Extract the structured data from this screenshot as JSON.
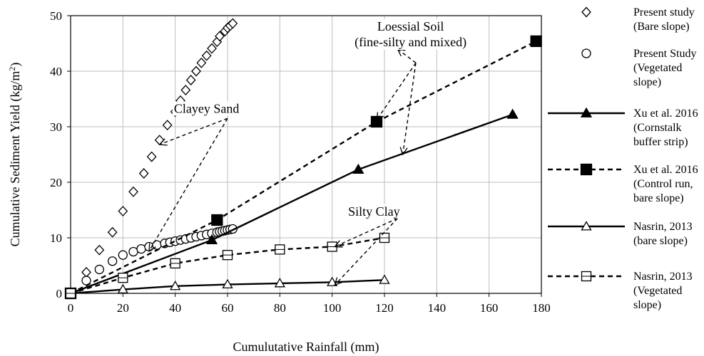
{
  "chart_data": {
    "type": "line",
    "title": "",
    "xlabel": "Cumulutative Rainfall (mm)",
    "ylabel": "Cumulative Sediment Yield (kg/m",
    "ylabel_sup": "2",
    "ylabel_end": ")",
    "xlim": [
      0,
      180
    ],
    "ylim": [
      0,
      50
    ],
    "xticks": [
      "0",
      "20",
      "40",
      "60",
      "80",
      "100",
      "120",
      "140",
      "160",
      "180"
    ],
    "yticks": [
      "0",
      "10",
      "20",
      "30",
      "40",
      "50"
    ],
    "grid": true,
    "legend_position": "right",
    "series": [
      {
        "legend": [
          "Present study",
          "(Bare slope)"
        ],
        "color": "#000000",
        "marker": "diamond-open",
        "line": "none",
        "x": [
          0,
          6,
          11,
          16,
          20,
          24,
          28,
          31,
          34,
          37,
          40,
          42,
          44,
          46,
          48,
          50,
          52,
          54,
          56,
          57,
          59,
          60,
          61,
          62
        ],
        "y": [
          0,
          3.8,
          7.8,
          11,
          14.8,
          18.3,
          21.6,
          24.6,
          27.6,
          30.3,
          32.7,
          34.7,
          36.6,
          38.4,
          40,
          41.5,
          42.8,
          44.1,
          45.3,
          46.3,
          47.2,
          47.8,
          48.2,
          48.6
        ]
      },
      {
        "legend": [
          "Present Study",
          "(Vegetated",
          "slope)"
        ],
        "color": "#000000",
        "marker": "circle-open",
        "line": "none",
        "x": [
          0,
          6,
          11,
          16,
          20,
          24,
          27,
          30,
          33,
          36,
          38,
          40,
          42,
          44,
          46,
          48,
          50,
          52,
          54,
          56,
          57,
          58,
          59,
          60,
          61,
          62
        ],
        "y": [
          0,
          2.3,
          4.3,
          5.8,
          6.9,
          7.5,
          8,
          8.4,
          8.7,
          9,
          9.2,
          9.4,
          9.6,
          9.8,
          10,
          10.2,
          10.4,
          10.6,
          10.8,
          11,
          11.1,
          11.2,
          11.3,
          11.4,
          11.5,
          11.6
        ]
      },
      {
        "legend": [
          "Xu et al. 2016",
          "(Cornstalk",
          "buffer strip)"
        ],
        "color": "#000000",
        "marker": "triangle-filled",
        "line": "solid",
        "x": [
          0,
          54,
          110,
          169
        ],
        "y": [
          0,
          9.6,
          22.3,
          32.2
        ]
      },
      {
        "legend": [
          "Xu et al. 2016",
          "(Control run,",
          "bare slope)"
        ],
        "color": "#000000",
        "marker": "square-filled",
        "line": "dashed",
        "x": [
          0,
          56,
          117,
          178
        ],
        "y": [
          0,
          13.2,
          30.9,
          45.4
        ]
      },
      {
        "legend": [
          "Nasrin, 2013",
          "(bare slope)"
        ],
        "color": "#000000",
        "marker": "triangle-open",
        "line": "solid",
        "x": [
          0,
          20,
          40,
          60,
          80,
          100,
          120
        ],
        "y": [
          0,
          0.7,
          1.3,
          1.6,
          1.8,
          2,
          2.4
        ]
      },
      {
        "legend": [
          "Nasrin, 2013",
          "(Vegetated",
          "slope)"
        ],
        "color": "#000000",
        "marker": "square-open",
        "line": "dashed",
        "x": [
          0,
          20,
          40,
          60,
          80,
          100,
          120
        ],
        "y": [
          0,
          2.8,
          5.4,
          6.9,
          7.9,
          8.4,
          10
        ]
      }
    ],
    "annotations": [
      {
        "lines": [
          "Clayey Sand"
        ],
        "label_at": [
          52,
          32.5
        ],
        "arrows": [
          {
            "from": [
              60,
              31.5
            ],
            "to": [
              34,
              26.8
            ]
          },
          {
            "from": [
              60,
              31.5
            ],
            "to": [
              30,
              7.6
            ]
          }
        ]
      },
      {
        "lines": [
          "Loessial Soil",
          "(fine-silty and mixed)"
        ],
        "label_at": [
          130,
          47.3
        ],
        "arrows": [
          {
            "from": [
              132,
              41.5
            ],
            "to": [
              117,
              31.2
            ]
          },
          {
            "from": [
              132,
              41.5
            ],
            "to": [
              127,
              25
            ]
          },
          {
            "from": [
              132,
              41.5
            ],
            "to": [
              125,
              44
            ]
          }
        ]
      },
      {
        "lines": [
          "Silty Clay"
        ],
        "label_at": [
          116,
          14
        ],
        "arrows": [
          {
            "from": [
              125,
              13.5
            ],
            "to": [
              101,
              8.4
            ]
          },
          {
            "from": [
              125,
              13.5
            ],
            "to": [
              101,
              1.5
            ]
          }
        ]
      }
    ]
  }
}
